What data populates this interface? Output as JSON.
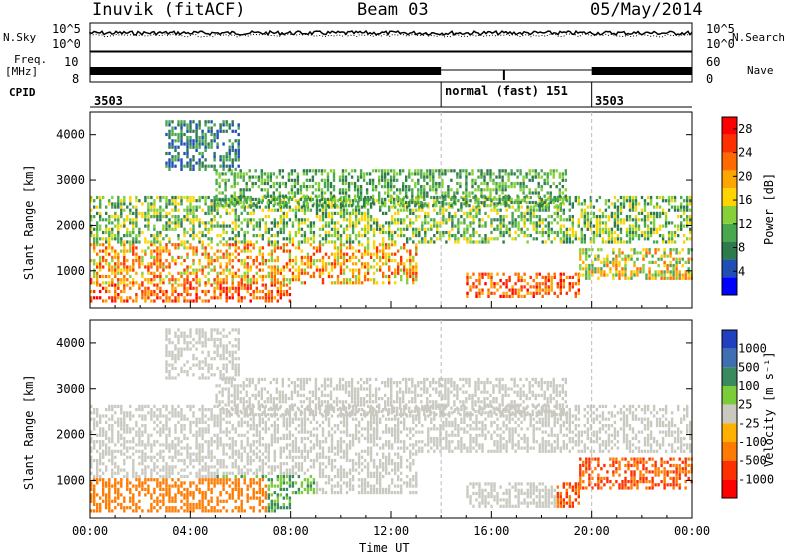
{
  "header": {
    "station": "Inuvik (fitACF)",
    "beam": "Beam 03",
    "date": "05/May/2014"
  },
  "left_labels": {
    "nsky": "N.Sky",
    "freq": "Freq.",
    "mhz": "[MHz]",
    "cpid": "CPID"
  },
  "right_labels": {
    "nsearch": "N.Search",
    "nave": "Nave"
  },
  "noise_axis": {
    "top": "10^5",
    "bottom": "10^0"
  },
  "freq_axis": {
    "top": "10",
    "bottom": "8",
    "right_top": "60",
    "right_bottom": "0"
  },
  "cpid_segments": [
    {
      "label": "3503"
    },
    {
      "label": "normal (fast) 151"
    },
    {
      "label": "3503"
    }
  ],
  "colors": {
    "power": [
      "#0000ff",
      "#1f4fb4",
      "#2d7a4c",
      "#49a84f",
      "#86d13a",
      "#ffd400",
      "#ffa500",
      "#ff6a00",
      "#ff3000",
      "#ff0000"
    ],
    "velocity": [
      "#2040c0",
      "#3f6fb0",
      "#3a8a60",
      "#7ccc3a",
      "#c9c9c0",
      "#ffb000",
      "#ff7a00",
      "#ff3000",
      "#ff0000"
    ]
  },
  "chart_data": [
    {
      "type": "heatmap",
      "name": "power",
      "xlabel": "Time UT",
      "ylabel": "Slant Range [km]",
      "x_ticks": [
        "00:00",
        "04:00",
        "08:00",
        "12:00",
        "16:00",
        "20:00",
        "00:00"
      ],
      "y_ticks": [
        1000,
        2000,
        3000,
        4000
      ],
      "ylim": [
        180,
        4500
      ],
      "colorbar_label": "Power [dB]",
      "colorbar_ticks": [
        4,
        8,
        12,
        16,
        20,
        24,
        28
      ],
      "colorbar_range": [
        0,
        30
      ]
    },
    {
      "type": "heatmap",
      "name": "velocity",
      "xlabel": "Time UT",
      "ylabel": "Slant Range [km]",
      "x_ticks": [
        "00:00",
        "04:00",
        "08:00",
        "12:00",
        "16:00",
        "20:00",
        "00:00"
      ],
      "y_ticks": [
        1000,
        2000,
        3000,
        4000
      ],
      "ylim": [
        180,
        4500
      ],
      "colorbar_label": "Velocity [m s⁻¹]",
      "colorbar_ticks": [
        "1000",
        "500",
        "100",
        "25",
        "-25",
        "-100",
        "-500",
        "-1000"
      ]
    }
  ]
}
